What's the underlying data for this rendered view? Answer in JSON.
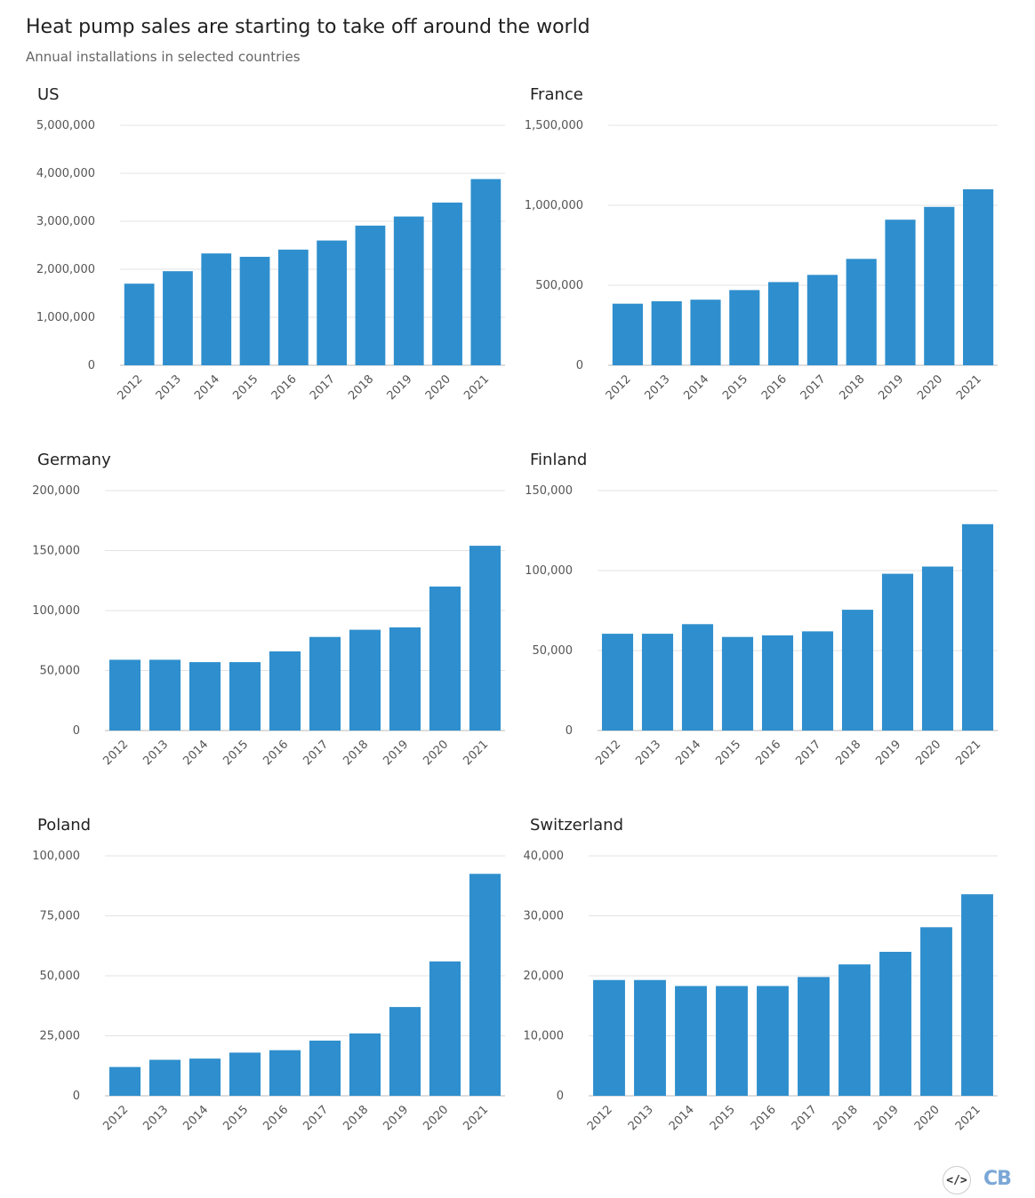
{
  "header": {
    "title": "Heat pump sales are starting to take off around the world",
    "subtitle": "Annual installations in selected countries"
  },
  "footer": {
    "embed_label": "</>",
    "logo_text": "CB"
  },
  "colors": {
    "bar": "#2f8fce",
    "grid": "#e3e3e3",
    "axis": "#bbbbbb"
  },
  "chart_data": [
    {
      "type": "bar",
      "title": "US",
      "categories": [
        "2012",
        "2013",
        "2014",
        "2015",
        "2016",
        "2017",
        "2018",
        "2019",
        "2020",
        "2021"
      ],
      "values": [
        1700000,
        1960000,
        2330000,
        2260000,
        2410000,
        2600000,
        2910000,
        3100000,
        3390000,
        3880000
      ],
      "ylim": [
        0,
        5000000
      ],
      "yticks": [
        0,
        1000000,
        2000000,
        3000000,
        4000000,
        5000000
      ],
      "ytick_labels": [
        "0",
        "1,000,000",
        "2,000,000",
        "3,000,000",
        "4,000,000",
        "5,000,000"
      ],
      "xlabel": "",
      "ylabel": ""
    },
    {
      "type": "bar",
      "title": "France",
      "categories": [
        "2012",
        "2013",
        "2014",
        "2015",
        "2016",
        "2017",
        "2018",
        "2019",
        "2020",
        "2021"
      ],
      "values": [
        385000,
        400000,
        410000,
        470000,
        520000,
        565000,
        665000,
        910000,
        990000,
        1100000
      ],
      "ylim": [
        0,
        1500000
      ],
      "yticks": [
        0,
        500000,
        1000000,
        1500000
      ],
      "ytick_labels": [
        "0",
        "500,000",
        "1,000,000",
        "1,500,000"
      ],
      "xlabel": "",
      "ylabel": ""
    },
    {
      "type": "bar",
      "title": "Germany",
      "categories": [
        "2012",
        "2013",
        "2014",
        "2015",
        "2016",
        "2017",
        "2018",
        "2019",
        "2020",
        "2021"
      ],
      "values": [
        59000,
        59000,
        57000,
        57000,
        66000,
        78000,
        84000,
        86000,
        120000,
        154000
      ],
      "ylim": [
        0,
        200000
      ],
      "yticks": [
        0,
        50000,
        100000,
        150000,
        200000
      ],
      "ytick_labels": [
        "0",
        "50,000",
        "100,000",
        "150,000",
        "200,000"
      ],
      "xlabel": "",
      "ylabel": ""
    },
    {
      "type": "bar",
      "title": "Finland",
      "categories": [
        "2012",
        "2013",
        "2014",
        "2015",
        "2016",
        "2017",
        "2018",
        "2019",
        "2020",
        "2021"
      ],
      "values": [
        60500,
        60500,
        66500,
        58500,
        59500,
        62000,
        75500,
        98000,
        102500,
        129000
      ],
      "ylim": [
        0,
        150000
      ],
      "yticks": [
        0,
        50000,
        100000,
        150000
      ],
      "ytick_labels": [
        "0",
        "50,000",
        "100,000",
        "150,000"
      ],
      "xlabel": "",
      "ylabel": ""
    },
    {
      "type": "bar",
      "title": "Poland",
      "categories": [
        "2012",
        "2013",
        "2014",
        "2015",
        "2016",
        "2017",
        "2018",
        "2019",
        "2020",
        "2021"
      ],
      "values": [
        12000,
        15000,
        15500,
        18000,
        19000,
        23000,
        26000,
        37000,
        56000,
        92500
      ],
      "ylim": [
        0,
        100000
      ],
      "yticks": [
        0,
        25000,
        50000,
        75000,
        100000
      ],
      "ytick_labels": [
        "0",
        "25,000",
        "50,000",
        "75,000",
        "100,000"
      ],
      "xlabel": "",
      "ylabel": ""
    },
    {
      "type": "bar",
      "title": "Switzerland",
      "categories": [
        "2012",
        "2013",
        "2014",
        "2015",
        "2016",
        "2017",
        "2018",
        "2019",
        "2020",
        "2021"
      ],
      "values": [
        19300,
        19300,
        18300,
        18300,
        18300,
        19800,
        21900,
        24000,
        28100,
        33600
      ],
      "ylim": [
        0,
        40000
      ],
      "yticks": [
        0,
        10000,
        20000,
        30000,
        40000
      ],
      "ytick_labels": [
        "0",
        "10,000",
        "20,000",
        "30,000",
        "40,000"
      ],
      "xlabel": "",
      "ylabel": ""
    }
  ]
}
